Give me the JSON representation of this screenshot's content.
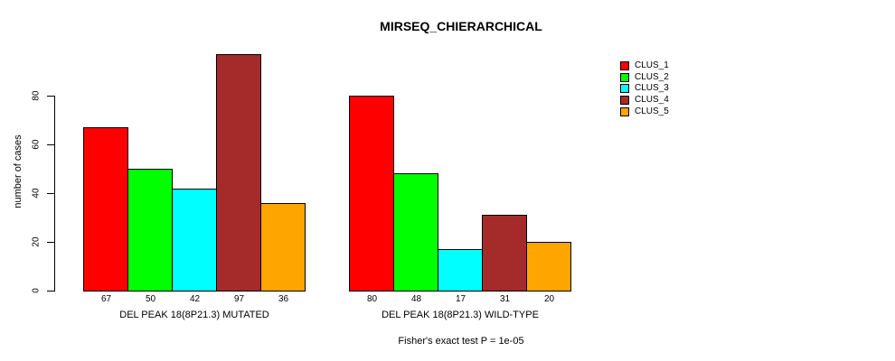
{
  "title": "MIRSEQ_CHIERARCHICAL",
  "footer": "Fisher's exact test P = 1e-05",
  "y_axis": {
    "label": "number of cases",
    "ticks": [
      0,
      20,
      40,
      60,
      80
    ]
  },
  "legend": {
    "position": "right",
    "items": [
      {
        "label": "CLUS_1",
        "color": "#ff0000"
      },
      {
        "label": "CLUS_2",
        "color": "#00ff00"
      },
      {
        "label": "CLUS_3",
        "color": "#00ffff"
      },
      {
        "label": "CLUS_4",
        "color": "#a52a2a"
      },
      {
        "label": "CLUS_5",
        "color": "#ffa500"
      }
    ]
  },
  "chart_data": {
    "type": "bar",
    "title": "MIRSEQ_CHIERARCHICAL",
    "xlabel": "",
    "ylabel": "number of cases",
    "ylim": [
      0,
      80
    ],
    "grid": false,
    "legend_position": "right",
    "series_names": [
      "CLUS_1",
      "CLUS_2",
      "CLUS_3",
      "CLUS_4",
      "CLUS_5"
    ],
    "series_colors": [
      "#ff0000",
      "#00ff00",
      "#00ffff",
      "#a52a2a",
      "#ffa500"
    ],
    "groups": [
      {
        "label": "DEL PEAK 18(8P21.3) MUTATED",
        "values": [
          67,
          50,
          42,
          97,
          36
        ]
      },
      {
        "label": "DEL PEAK 18(8P21.3) WILD-TYPE",
        "values": [
          80,
          48,
          17,
          31,
          20
        ]
      }
    ],
    "bar_value_labels_shown": true,
    "annotation": "Fisher's exact test P = 1e-05"
  }
}
